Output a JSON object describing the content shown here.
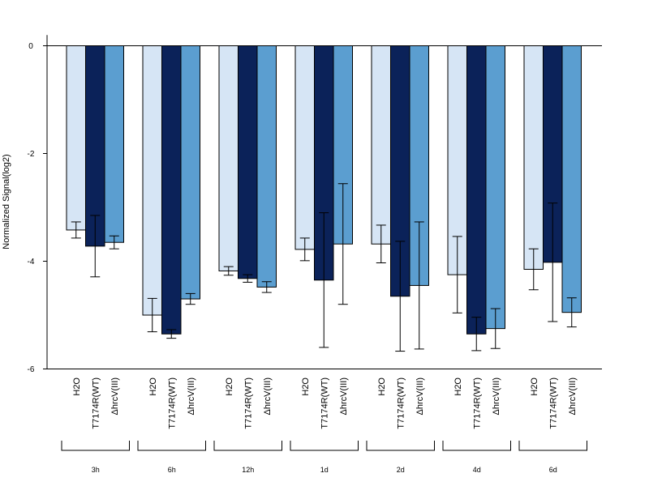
{
  "chart_data": {
    "type": "bar",
    "title": "",
    "ylabel": "Normalized Signal(log2)",
    "xlabel": "",
    "ylim": [
      -6,
      0.2
    ],
    "yticks": [
      0,
      -2,
      -4,
      -6
    ],
    "groups": [
      "3h",
      "6h",
      "12h",
      "1d",
      "2d",
      "4d",
      "6d"
    ],
    "series": [
      {
        "label": "H2O",
        "color": "#d6e5f5",
        "values": [
          -3.42,
          -5.0,
          -4.18,
          -3.78,
          -3.68,
          -4.25,
          -4.15
        ],
        "error": [
          0.15,
          0.31,
          0.08,
          0.21,
          0.35,
          0.71,
          0.38
        ]
      },
      {
        "label": "T7174R(WT)",
        "color": "#0b2259",
        "values": [
          -3.72,
          -5.35,
          -4.32,
          -4.35,
          -4.65,
          -5.35,
          -4.02
        ],
        "error": [
          0.57,
          0.08,
          0.07,
          1.25,
          1.02,
          0.31,
          1.1
        ]
      },
      {
        "label": "ΔhrcV(III)",
        "color": "#5b9ed0",
        "values": [
          -3.65,
          -4.7,
          -4.48,
          -3.68,
          -4.45,
          -5.25,
          -4.95
        ],
        "error": [
          0.12,
          0.1,
          0.1,
          1.12,
          1.18,
          0.37,
          0.27
        ]
      }
    ],
    "baseline": 0,
    "legend": "none"
  }
}
